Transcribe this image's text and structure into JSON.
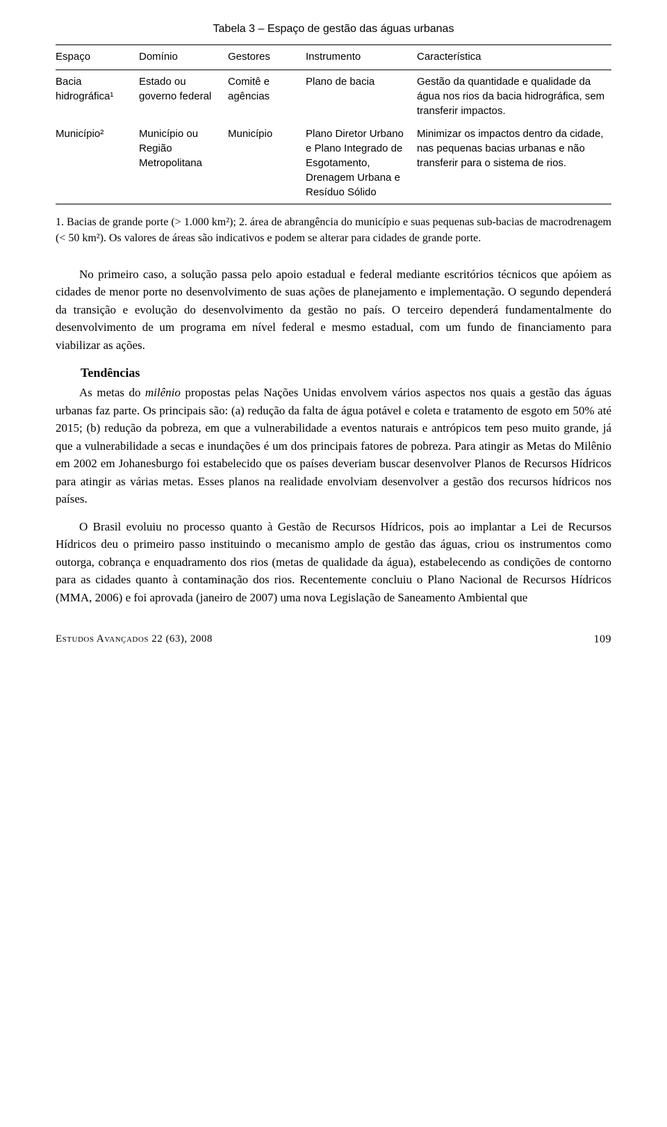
{
  "table": {
    "title": "Tabela 3 – Espaço de gestão das águas urbanas",
    "columns": [
      "Espaço",
      "Domínio",
      "Gestores",
      "Instrumento",
      "Característica"
    ],
    "rows": [
      {
        "espaco": "Bacia hidrográfica¹",
        "dominio": "Estado ou governo federal",
        "gestores": "Comitê e agências",
        "instrumento": "Plano de bacia",
        "caracteristica": "Gestão da quantidade e qualidade da água nos rios da bacia hidrográfica, sem transferir impactos."
      },
      {
        "espaco": "Município²",
        "dominio": "Município ou Região Metropolitana",
        "gestores": "Município",
        "instrumento": "Plano Diretor Urbano e Plano Integrado de Esgotamento, Drenagem Urbana e Resíduo Sólido",
        "caracteristica": "Minimizar os impactos dentro da cidade, nas pequenas bacias urbanas e não transferir para o sistema de rios."
      }
    ],
    "note": "1. Bacias de grande porte (> 1.000 km²); 2. área de abrangência do município e suas pequenas sub-bacias de macrodrenagem (< 50 km²). Os valores de áreas são indicativos e podem se alterar para cidades de grande porte."
  },
  "paragraphs": {
    "p1": "No primeiro caso, a solução passa pelo apoio estadual e federal mediante escritórios técnicos que apóiem as cidades de menor porte no desenvolvimento de suas ações de planejamento e implementação. O segundo dependerá da transição e evolução do desenvolvimento da gestão no país. O terceiro dependerá fundamentalmente do desenvolvimento de um programa em nível federal e mesmo estadual, com um fundo de financiamento para viabilizar as ações.",
    "heading": "Tendências",
    "p2_pre": "As metas do ",
    "p2_italic": "milênio",
    "p2_post": " propostas pelas Nações Unidas envolvem vários aspectos nos quais a gestão das águas urbanas faz parte. Os principais são: (a) redução da falta de água potável e coleta e tratamento de esgoto em 50% até 2015; (b) redução da pobreza, em que a vulnerabilidade a eventos naturais e antrópicos tem peso muito grande, já que a vulnerabilidade a secas e inundações é um dos principais fatores de pobreza. Para atingir as Metas do Milênio em 2002 em Johanesburgo foi estabelecido que os países deveriam buscar desenvolver Planos de Recursos Hídricos para atingir as várias metas. Esses planos na realidade envolviam desenvolver a gestão dos recursos hídricos nos países.",
    "p3": "O Brasil evoluiu no processo quanto à Gestão de Recursos Hídricos, pois ao implantar a Lei de Recursos Hídricos deu o primeiro passo instituindo o mecanismo amplo de gestão das águas, criou os instrumentos como outorga, cobrança e enquadramento dos rios (metas de qualidade da água), estabelecendo as condições de contorno para as cidades quanto à contaminação dos rios. Recentemente concluiu o Plano Nacional de Recursos Hídricos (MMA, 2006) e foi aprovada (janeiro de 2007) uma nova Legislação de Saneamento Ambiental que"
  },
  "footer": {
    "journal_pre": "E",
    "journal_mid": "studos",
    "journal_pre2": " A",
    "journal_mid2": "vançados",
    "issue": " 22 (63), 2008",
    "page": "109"
  }
}
